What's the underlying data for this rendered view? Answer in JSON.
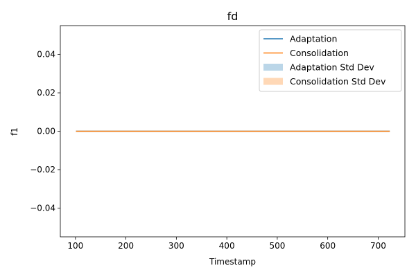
{
  "chart_data": {
    "type": "line",
    "title": "fd",
    "xlabel": "Timestamp",
    "ylabel": "f1",
    "xlim": [
      70,
      753
    ],
    "ylim": [
      -0.055,
      0.055
    ],
    "xticks": [
      100,
      200,
      300,
      400,
      500,
      600,
      700
    ],
    "yticks": [
      -0.04,
      -0.02,
      0.0,
      0.02,
      0.04
    ],
    "ytick_labels": [
      "−0.04",
      "−0.02",
      "0.00",
      "0.02",
      "0.04"
    ],
    "grid": false,
    "legend_position": "top-right",
    "series": [
      {
        "name": "Adaptation",
        "color": "#1f77b4",
        "x": [
          101,
          723
        ],
        "y": [
          0.0,
          0.0
        ]
      },
      {
        "name": "Consolidation",
        "color": "#ff7f0e",
        "x": [
          101,
          723
        ],
        "y": [
          0.0,
          0.0
        ]
      }
    ],
    "bands": [
      {
        "name": "Adaptation Std Dev",
        "color": "#1f77b4",
        "alpha": 0.3,
        "x": [
          101,
          723
        ],
        "lower": [
          0.0,
          0.0
        ],
        "upper": [
          0.0,
          0.0
        ]
      },
      {
        "name": "Consolidation Std Dev",
        "color": "#ff7f0e",
        "alpha": 0.3,
        "x": [
          101,
          723
        ],
        "lower": [
          0.0,
          0.0
        ],
        "upper": [
          0.0,
          0.0
        ]
      }
    ]
  }
}
